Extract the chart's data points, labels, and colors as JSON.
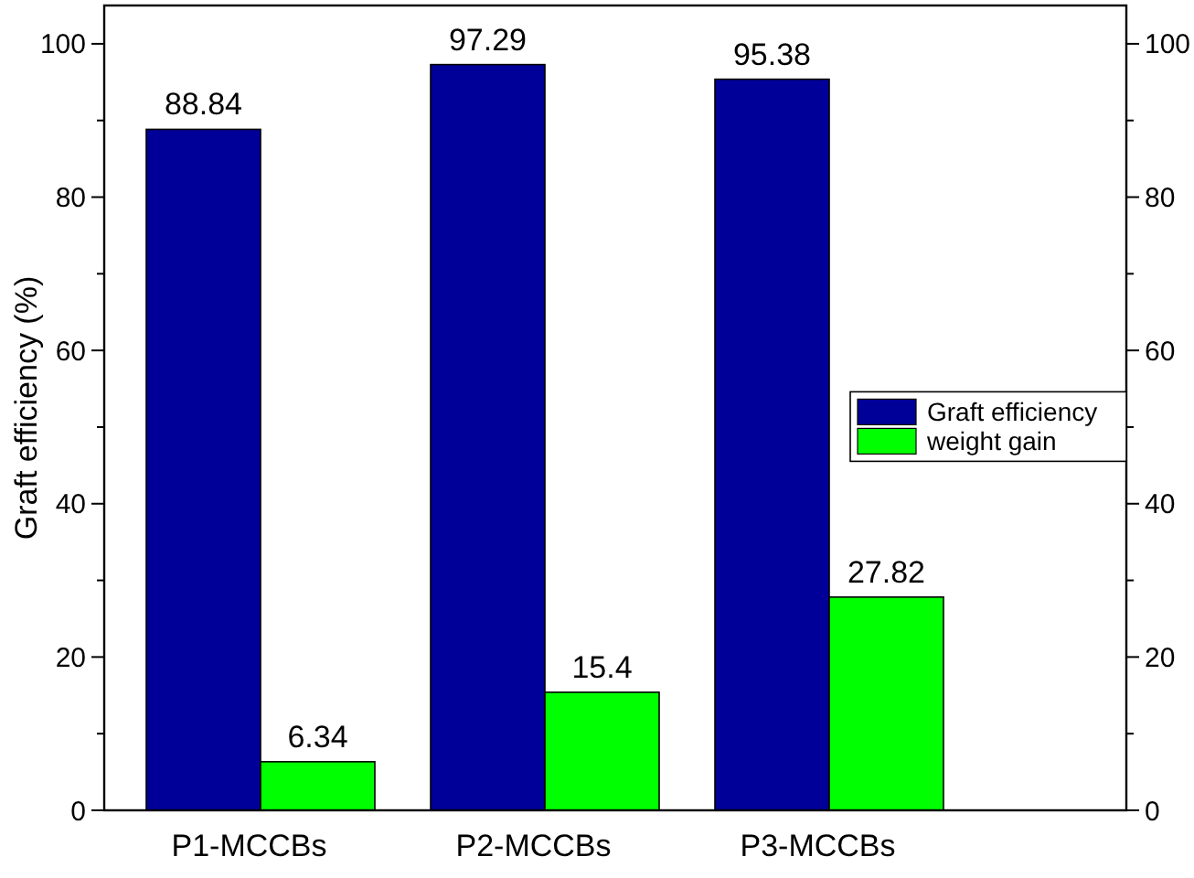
{
  "chart_data": {
    "type": "bar",
    "ylabel": "Graft efficiency (%)",
    "categories": [
      "P1-MCCBs",
      "P2-MCCBs",
      "P3-MCCBs"
    ],
    "series": [
      {
        "name": "Graft efficiency",
        "color": "#000099",
        "values": [
          88.84,
          97.29,
          95.38
        ]
      },
      {
        "name": "weight gain",
        "color": "#00ff00",
        "values": [
          6.34,
          15.4,
          27.82
        ]
      }
    ],
    "ylim": [
      0,
      105
    ],
    "yticks": [
      0,
      {
        "value": 10,
        "label": null
      },
      20,
      {
        "value": 30,
        "label": null
      },
      40,
      {
        "value": 50,
        "label": null
      },
      60,
      {
        "value": 70,
        "label": null
      },
      80,
      {
        "value": 90,
        "label": null
      },
      100
    ],
    "y2lim": [
      0,
      105
    ],
    "y2ticks": [
      0,
      {
        "value": 10,
        "label": null
      },
      20,
      {
        "value": 30,
        "label": null
      },
      40,
      {
        "value": 50,
        "label": null
      },
      60,
      {
        "value": 70,
        "label": null
      },
      80,
      {
        "value": 90,
        "label": null
      },
      100
    ],
    "data_labels": true,
    "legend": "right"
  }
}
